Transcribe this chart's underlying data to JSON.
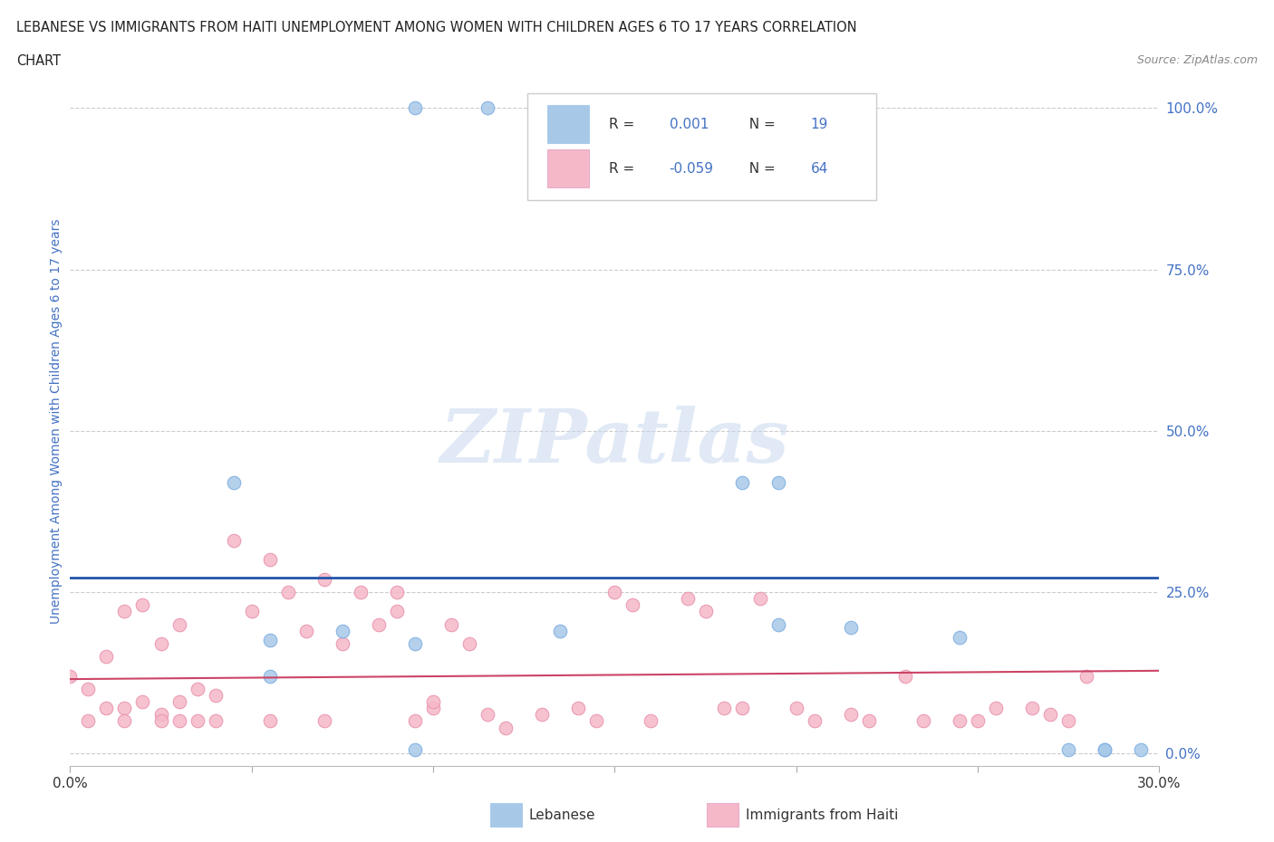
{
  "title_line1": "LEBANESE VS IMMIGRANTS FROM HAITI UNEMPLOYMENT AMONG WOMEN WITH CHILDREN AGES 6 TO 17 YEARS CORRELATION",
  "title_line2": "CHART",
  "source_text": "Source: ZipAtlas.com",
  "ylabel": "Unemployment Among Women with Children Ages 6 to 17 years",
  "xlim": [
    0.0,
    0.3
  ],
  "ylim": [
    -0.02,
    1.05
  ],
  "ytick_vals": [
    0.0,
    0.25,
    0.5,
    0.75,
    1.0
  ],
  "ytick_labels": [
    "0.0%",
    "25.0%",
    "50.0%",
    "75.0%",
    "100.0%"
  ],
  "xtick_vals": [
    0.0,
    0.05,
    0.1,
    0.15,
    0.2,
    0.25,
    0.3
  ],
  "xtick_labels": [
    "0.0%",
    "",
    "",
    "",
    "",
    "",
    "30.0%"
  ],
  "background_color": "#ffffff",
  "grid_color": "#cccccc",
  "blue_color": "#a8c8e8",
  "pink_color": "#f5b8c8",
  "blue_edge_color": "#7aace0",
  "pink_edge_color": "#e890aa",
  "blue_line_color": "#2255aa",
  "pink_line_color": "#cc4466",
  "watermark": "ZIPatlas",
  "blue_line_y": 0.272,
  "pink_line_y_at_0": 0.115,
  "pink_line_y_at_030": 0.128,
  "blue_scatter_x": [
    0.095,
    0.115,
    0.145,
    0.045,
    0.055,
    0.075,
    0.095,
    0.135,
    0.185,
    0.195,
    0.285,
    0.215,
    0.295,
    0.055,
    0.095,
    0.195,
    0.245,
    0.275,
    0.285
  ],
  "blue_scatter_y": [
    1.0,
    1.0,
    1.0,
    0.42,
    0.175,
    0.19,
    0.17,
    0.19,
    0.42,
    0.2,
    0.005,
    0.195,
    0.005,
    0.12,
    0.005,
    0.42,
    0.18,
    0.005,
    0.005
  ],
  "pink_scatter_x": [
    0.0,
    0.005,
    0.005,
    0.01,
    0.01,
    0.015,
    0.015,
    0.015,
    0.02,
    0.02,
    0.025,
    0.025,
    0.025,
    0.03,
    0.03,
    0.03,
    0.035,
    0.035,
    0.04,
    0.04,
    0.045,
    0.05,
    0.055,
    0.055,
    0.06,
    0.065,
    0.07,
    0.07,
    0.075,
    0.08,
    0.085,
    0.09,
    0.09,
    0.095,
    0.1,
    0.1,
    0.105,
    0.11,
    0.115,
    0.12,
    0.13,
    0.14,
    0.145,
    0.15,
    0.155,
    0.16,
    0.17,
    0.175,
    0.18,
    0.185,
    0.19,
    0.2,
    0.205,
    0.215,
    0.22,
    0.23,
    0.235,
    0.245,
    0.25,
    0.255,
    0.265,
    0.27,
    0.275,
    0.28
  ],
  "pink_scatter_y": [
    0.12,
    0.1,
    0.05,
    0.15,
    0.07,
    0.22,
    0.07,
    0.05,
    0.23,
    0.08,
    0.17,
    0.06,
    0.05,
    0.2,
    0.08,
    0.05,
    0.1,
    0.05,
    0.05,
    0.09,
    0.33,
    0.22,
    0.3,
    0.05,
    0.25,
    0.19,
    0.27,
    0.05,
    0.17,
    0.25,
    0.2,
    0.25,
    0.22,
    0.05,
    0.07,
    0.08,
    0.2,
    0.17,
    0.06,
    0.04,
    0.06,
    0.07,
    0.05,
    0.25,
    0.23,
    0.05,
    0.24,
    0.22,
    0.07,
    0.07,
    0.24,
    0.07,
    0.05,
    0.06,
    0.05,
    0.12,
    0.05,
    0.05,
    0.05,
    0.07,
    0.07,
    0.06,
    0.05,
    0.12
  ]
}
